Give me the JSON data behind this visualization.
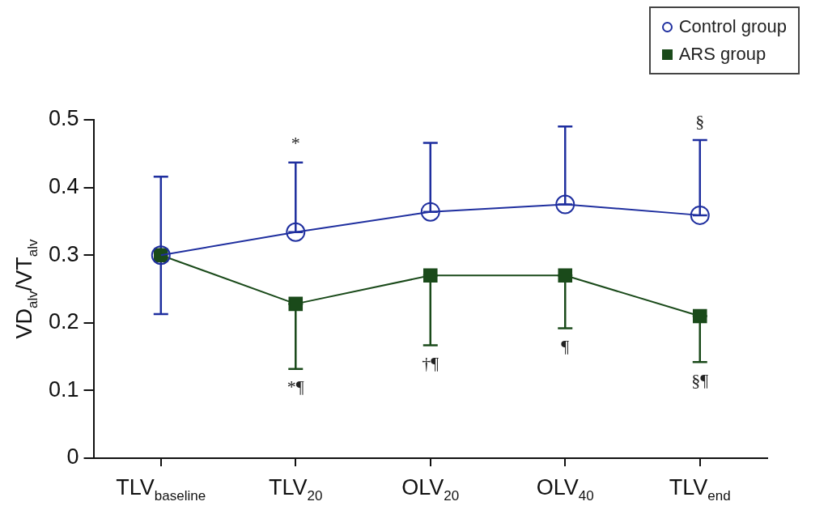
{
  "chart_data": {
    "type": "line",
    "ylabel": "VD$_{alv}$/VT$_{alv}$",
    "categories": [
      "TLV$_{baseline}$",
      "TLV$_{20}$",
      "OLV$_{20}$",
      "OLV$_{40}$",
      "TLV$_{end}$"
    ],
    "series": [
      {
        "name": "Control group",
        "color": "#1f2f9f",
        "marker": "circle",
        "values": [
          0.3,
          0.334,
          0.364,
          0.375,
          0.359
        ],
        "errors": [
          [
            0.213,
            0.416
          ],
          [
            0.334,
            0.437
          ],
          [
            0.364,
            0.466
          ],
          [
            0.375,
            0.49
          ],
          [
            0.359,
            0.47
          ]
        ]
      },
      {
        "name": "ARS group",
        "color": "#1a4a1a",
        "marker": "square",
        "values": [
          0.3,
          0.228,
          0.27,
          0.27,
          0.21
        ],
        "errors": [
          null,
          [
            0.132,
            0.228
          ],
          [
            0.167,
            0.27
          ],
          [
            0.192,
            0.27
          ],
          [
            0.142,
            0.21
          ]
        ]
      }
    ],
    "ylim": [
      0,
      0.5
    ],
    "yticks": [
      0,
      0.1,
      0.2,
      0.3,
      0.4,
      0.5
    ],
    "grid": false,
    "legend": "top right",
    "line_style": "solid",
    "annotations": [
      {
        "text": "*",
        "x": "TLV$_{20}$",
        "y": 0.437
      },
      {
        "text": "§",
        "x": "TLV$_{end}$",
        "y": 0.47
      },
      {
        "text": "*¶",
        "x": "TLV$_{20}$",
        "y": 0.132
      },
      {
        "text": "†¶",
        "x": "OLV$_{20}$",
        "y": 0.167
      },
      {
        "text": "¶",
        "x": "OLV$_{40}$",
        "y": 0.192
      },
      {
        "text": "§¶",
        "x": "TLV$_{end}$",
        "y": 0.142
      }
    ]
  }
}
